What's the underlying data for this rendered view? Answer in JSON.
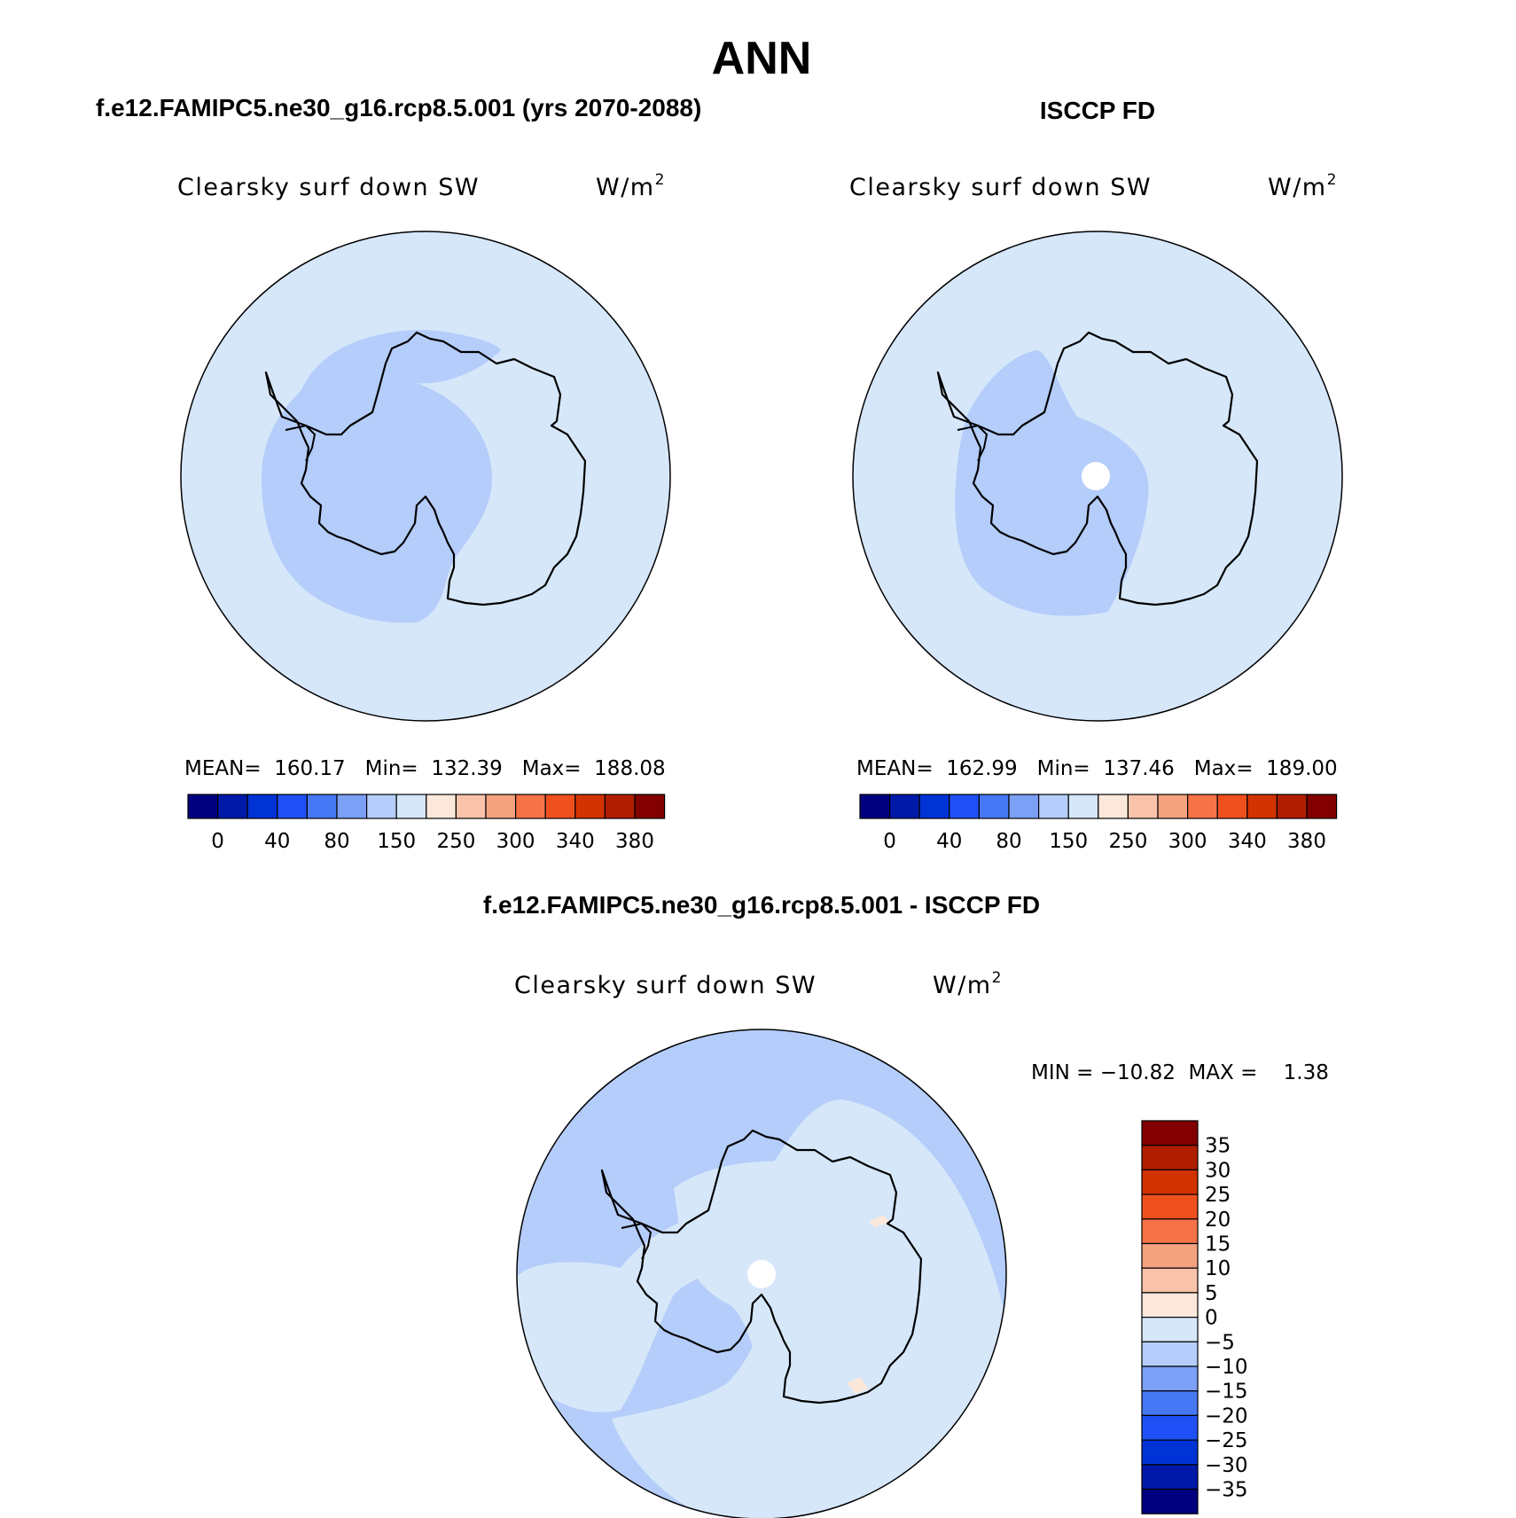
{
  "page_title": "ANN",
  "panels": [
    {
      "case_title": "f.e12.FAMIPC5.ne30_g16.rcp8.5.001 (yrs 2070-2088)",
      "variable": "Clearsky surf down SW",
      "units": "W/m",
      "units_sup": "2",
      "stats": "MEAN=  160.17   Min=  132.39   Max=  188.08",
      "has_pole_hole": false
    },
    {
      "case_title": "ISCCP FD",
      "variable": "Clearsky surf down SW",
      "units": "W/m",
      "units_sup": "2",
      "stats": "MEAN=  162.99   Min=  137.46   Max=  189.00",
      "has_pole_hole": true
    }
  ],
  "abs_colorbar": {
    "colors": [
      "#00007f",
      "#0019a8",
      "#0033d6",
      "#1e50f5",
      "#4678f5",
      "#7ca0f5",
      "#b4cdfa",
      "#d6e7fa",
      "#fbe8da",
      "#f8c3aa",
      "#f5a27f",
      "#f57346",
      "#f0501e",
      "#d23200",
      "#b01e00",
      "#820000"
    ],
    "tick_labels": [
      "0",
      "40",
      "80",
      "150",
      "250",
      "300",
      "340",
      "380"
    ]
  },
  "diff_panel": {
    "title": "f.e12.FAMIPC5.ne30_g16.rcp8.5.001 - ISCCP FD",
    "variable": "Clearsky surf down SW",
    "units": "W/m",
    "units_sup": "2",
    "minmax": "MIN = −10.82  MAX =    1.38",
    "colorbar_colors": [
      "#820000",
      "#b01e00",
      "#d23200",
      "#f0501e",
      "#f57346",
      "#f5a27f",
      "#f8c3aa",
      "#fbe8da",
      "#d6e7fa",
      "#b4cdfa",
      "#7ca0f5",
      "#4678f5",
      "#1e50f5",
      "#0033d6",
      "#0019a8",
      "#00007f"
    ],
    "colorbar_labels": [
      "35",
      "30",
      "25",
      "20",
      "15",
      "10",
      "5",
      "0",
      "−5",
      "−10",
      "−15",
      "−20",
      "−25",
      "−30",
      "−35"
    ]
  },
  "colors": {
    "ocean_fill": "#d6e7fa",
    "band_fill": "#b4cdfa",
    "pole_hole": "#ffffff",
    "coastline": "#000000"
  }
}
